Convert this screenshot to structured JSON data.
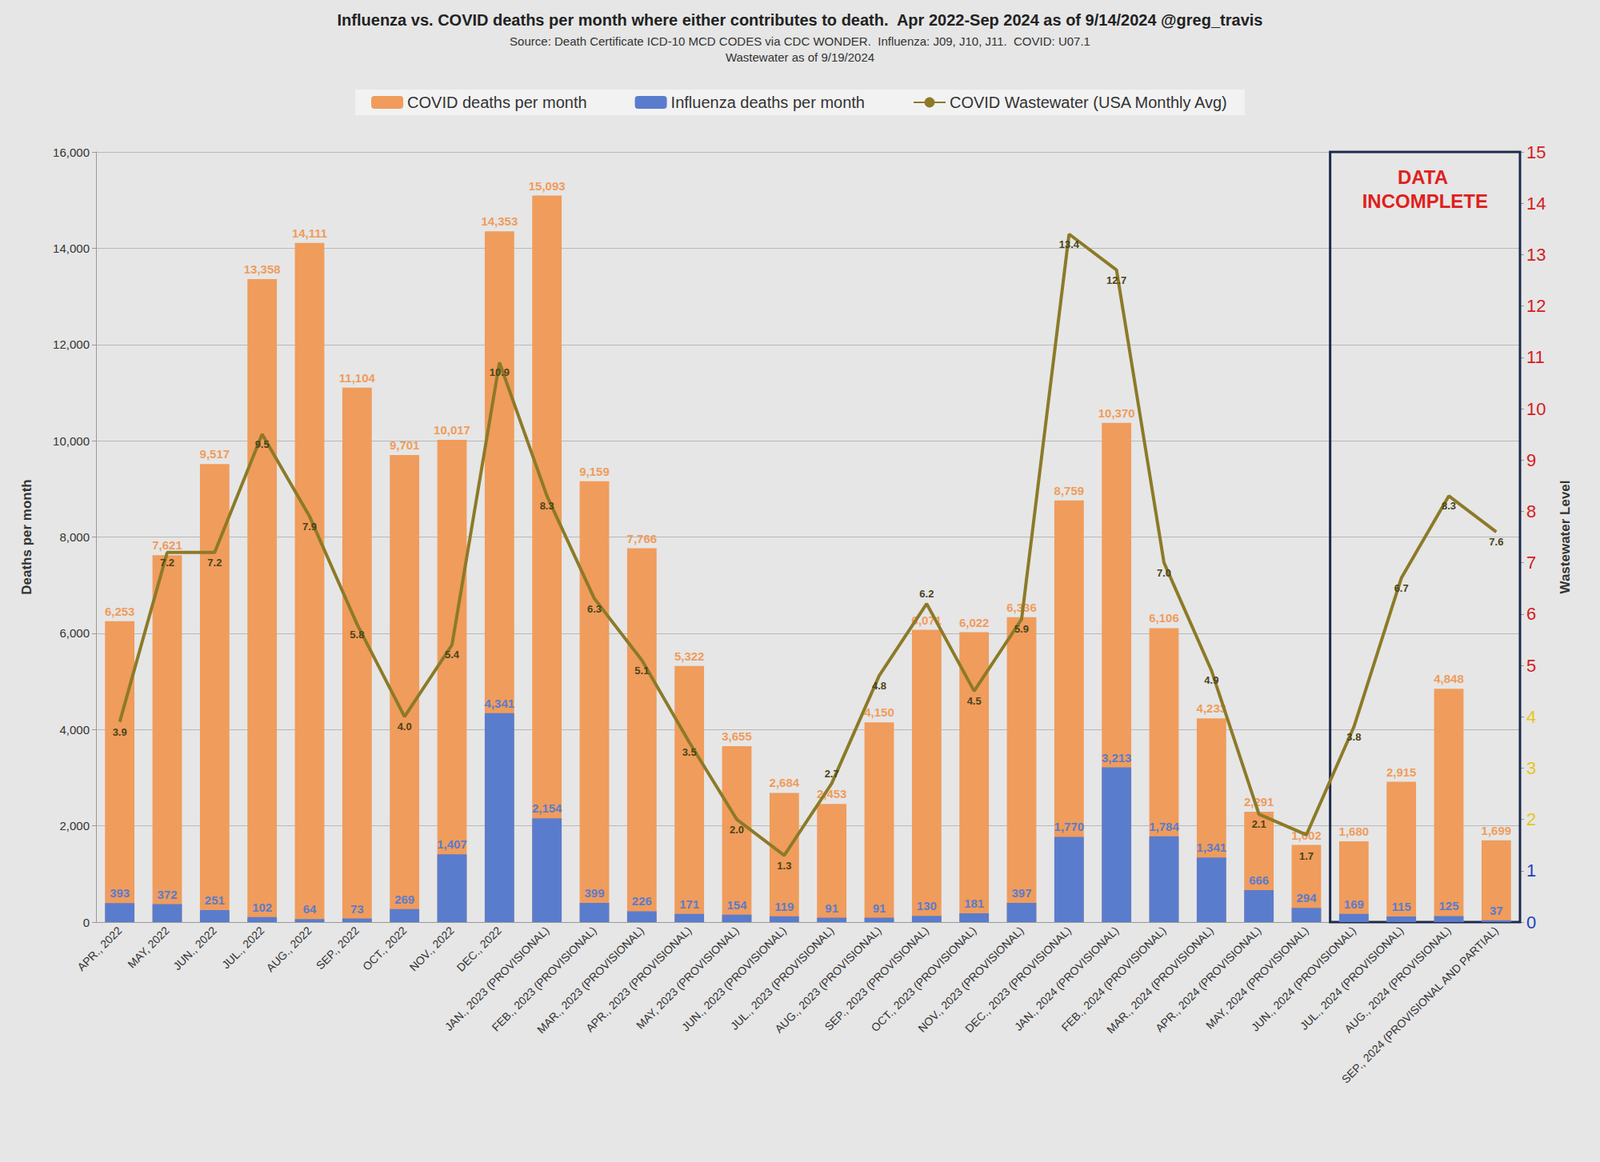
{
  "chart_data": {
    "type": "bar",
    "title": "Influenza vs. COVID deaths per month where either contributes to death.  Apr 2022-Sep 2024 as of 9/14/2024 @greg_travis",
    "subtitle": [
      "Source: Death Certificate ICD-10 MCD CODES via CDC WONDER.  Influenza: J09, J10, J11.  COVID: U07.1",
      "Wastewater as of 9/19/2024"
    ],
    "ylabel": "Deaths per month",
    "y2label": "Wastewater Level",
    "categories": [
      "APR., 2022",
      "MAY, 2022",
      "JUN., 2022",
      "JUL., 2022",
      "AUG., 2022",
      "SEP., 2022",
      "OCT., 2022",
      "NOV., 2022",
      "DEC., 2022",
      "JAN., 2023 (PROVISIONAL)",
      "FEB., 2023 (PROVISIONAL)",
      "MAR., 2023 (PROVISIONAL)",
      "APR., 2023 (PROVISIONAL)",
      "MAY, 2023 (PROVISIONAL)",
      "JUN., 2023 (PROVISIONAL)",
      "JUL., 2023 (PROVISIONAL)",
      "AUG., 2023 (PROVISIONAL)",
      "SEP., 2023 (PROVISIONAL)",
      "OCT., 2023 (PROVISIONAL)",
      "NOV., 2023 (PROVISIONAL)",
      "DEC., 2023 (PROVISIONAL)",
      "JAN., 2024 (PROVISIONAL)",
      "FEB., 2024 (PROVISIONAL)",
      "MAR., 2024 (PROVISIONAL)",
      "APR., 2024 (PROVISIONAL)",
      "MAY, 2024 (PROVISIONAL)",
      "JUN., 2024 (PROVISIONAL)",
      "JUL., 2024 (PROVISIONAL)",
      "AUG., 2024 (PROVISIONAL)",
      "SEP., 2024 (PROVISIONAL AND PARTIAL)"
    ],
    "series": [
      {
        "name": "COVID deaths per month",
        "type": "bar",
        "color": "#f09c5c",
        "values": [
          6253,
          7621,
          9517,
          13358,
          14111,
          11104,
          9701,
          10017,
          14353,
          15093,
          9159,
          7766,
          5322,
          3655,
          2684,
          2453,
          4150,
          6071,
          6022,
          6336,
          8759,
          10370,
          6106,
          4233,
          2291,
          1602,
          1680,
          2915,
          4848,
          1699
        ],
        "value_labels": [
          "6,253",
          "7,621",
          "9,517",
          "13,358",
          "14,111",
          "11,104",
          "9,701",
          "10,017",
          "14,353",
          "15,093",
          "9,159",
          "7,766",
          "5,322",
          "3,655",
          "2,684",
          "2,453",
          "4,150",
          "6,071",
          "6,022",
          "6,336",
          "8,759",
          "10,370",
          "6,106",
          "4,233",
          "2,291",
          "1,602",
          "1,680",
          "2,915",
          "4,848",
          "1,699"
        ]
      },
      {
        "name": "Influenza deaths per month",
        "type": "bar",
        "color": "#5a7ccc",
        "values": [
          393,
          372,
          251,
          102,
          64,
          73,
          269,
          1407,
          4341,
          2154,
          399,
          226,
          171,
          154,
          119,
          91,
          91,
          130,
          181,
          397,
          1770,
          3213,
          1784,
          1341,
          666,
          294,
          169,
          115,
          125,
          37
        ],
        "value_labels": [
          "393",
          "372",
          "251",
          "102",
          "64",
          "73",
          "269",
          "1,407",
          "4,341",
          "2,154",
          "399",
          "226",
          "171",
          "154",
          "119",
          "91",
          "91",
          "130",
          "181",
          "397",
          "1,770",
          "3,213",
          "1,784",
          "1,341",
          "666",
          "294",
          "169",
          "115",
          "125",
          "37"
        ]
      },
      {
        "name": "COVID Wastewater (USA Monthly Avg)",
        "type": "line",
        "axis": "y2",
        "color": "#8c7a28",
        "values": [
          3.9,
          7.2,
          7.2,
          9.5,
          7.9,
          5.8,
          4.0,
          5.4,
          10.9,
          8.3,
          6.3,
          5.1,
          3.5,
          2.0,
          1.3,
          2.7,
          4.8,
          6.2,
          4.5,
          5.9,
          13.4,
          12.7,
          7.0,
          4.9,
          2.1,
          1.7,
          3.8,
          6.7,
          8.3,
          7.6
        ],
        "value_labels": [
          "3.9",
          "7.2",
          "7.2",
          "9.5",
          "7.9",
          "5.8",
          "4.0",
          "5.4",
          "10.9",
          "8.3",
          "6.3",
          "5.1",
          "3.5",
          "2.0",
          "1.3",
          "2.7",
          "4.8",
          "6.2",
          "4.5",
          "5.9",
          "13.4",
          "12.7",
          "7.0",
          "4.9",
          "2.1",
          "1.7",
          "3.8",
          "6.7",
          "8.3",
          "7.6"
        ]
      }
    ],
    "ylim": [
      0,
      16000
    ],
    "yticks": [
      0,
      {
        "value": 2000,
        "label": "2,000"
      },
      {
        "value": 4000,
        "label": "4,000"
      },
      {
        "value": 6000,
        "label": "6,000"
      },
      {
        "value": 8000,
        "label": "8,000"
      },
      {
        "value": 10000,
        "label": "10,000"
      },
      {
        "value": 12000,
        "label": "12,000"
      },
      {
        "value": 14000,
        "label": "14,000"
      },
      {
        "value": 16000,
        "label": "16,000"
      }
    ],
    "y2lim": [
      0,
      15
    ],
    "y2ticks": [
      0,
      1,
      2,
      3,
      4,
      5,
      6,
      7,
      8,
      9,
      10,
      11,
      12,
      13,
      14,
      15
    ],
    "grid": true,
    "legend": "top",
    "stacked": false,
    "data_labels": true,
    "annotations": [
      {
        "text": "DATA INCOMPLETE",
        "from": "JUN., 2024 (PROVISIONAL)",
        "to": "SEP., 2024 (PROVISIONAL AND PARTIAL)"
      }
    ]
  }
}
